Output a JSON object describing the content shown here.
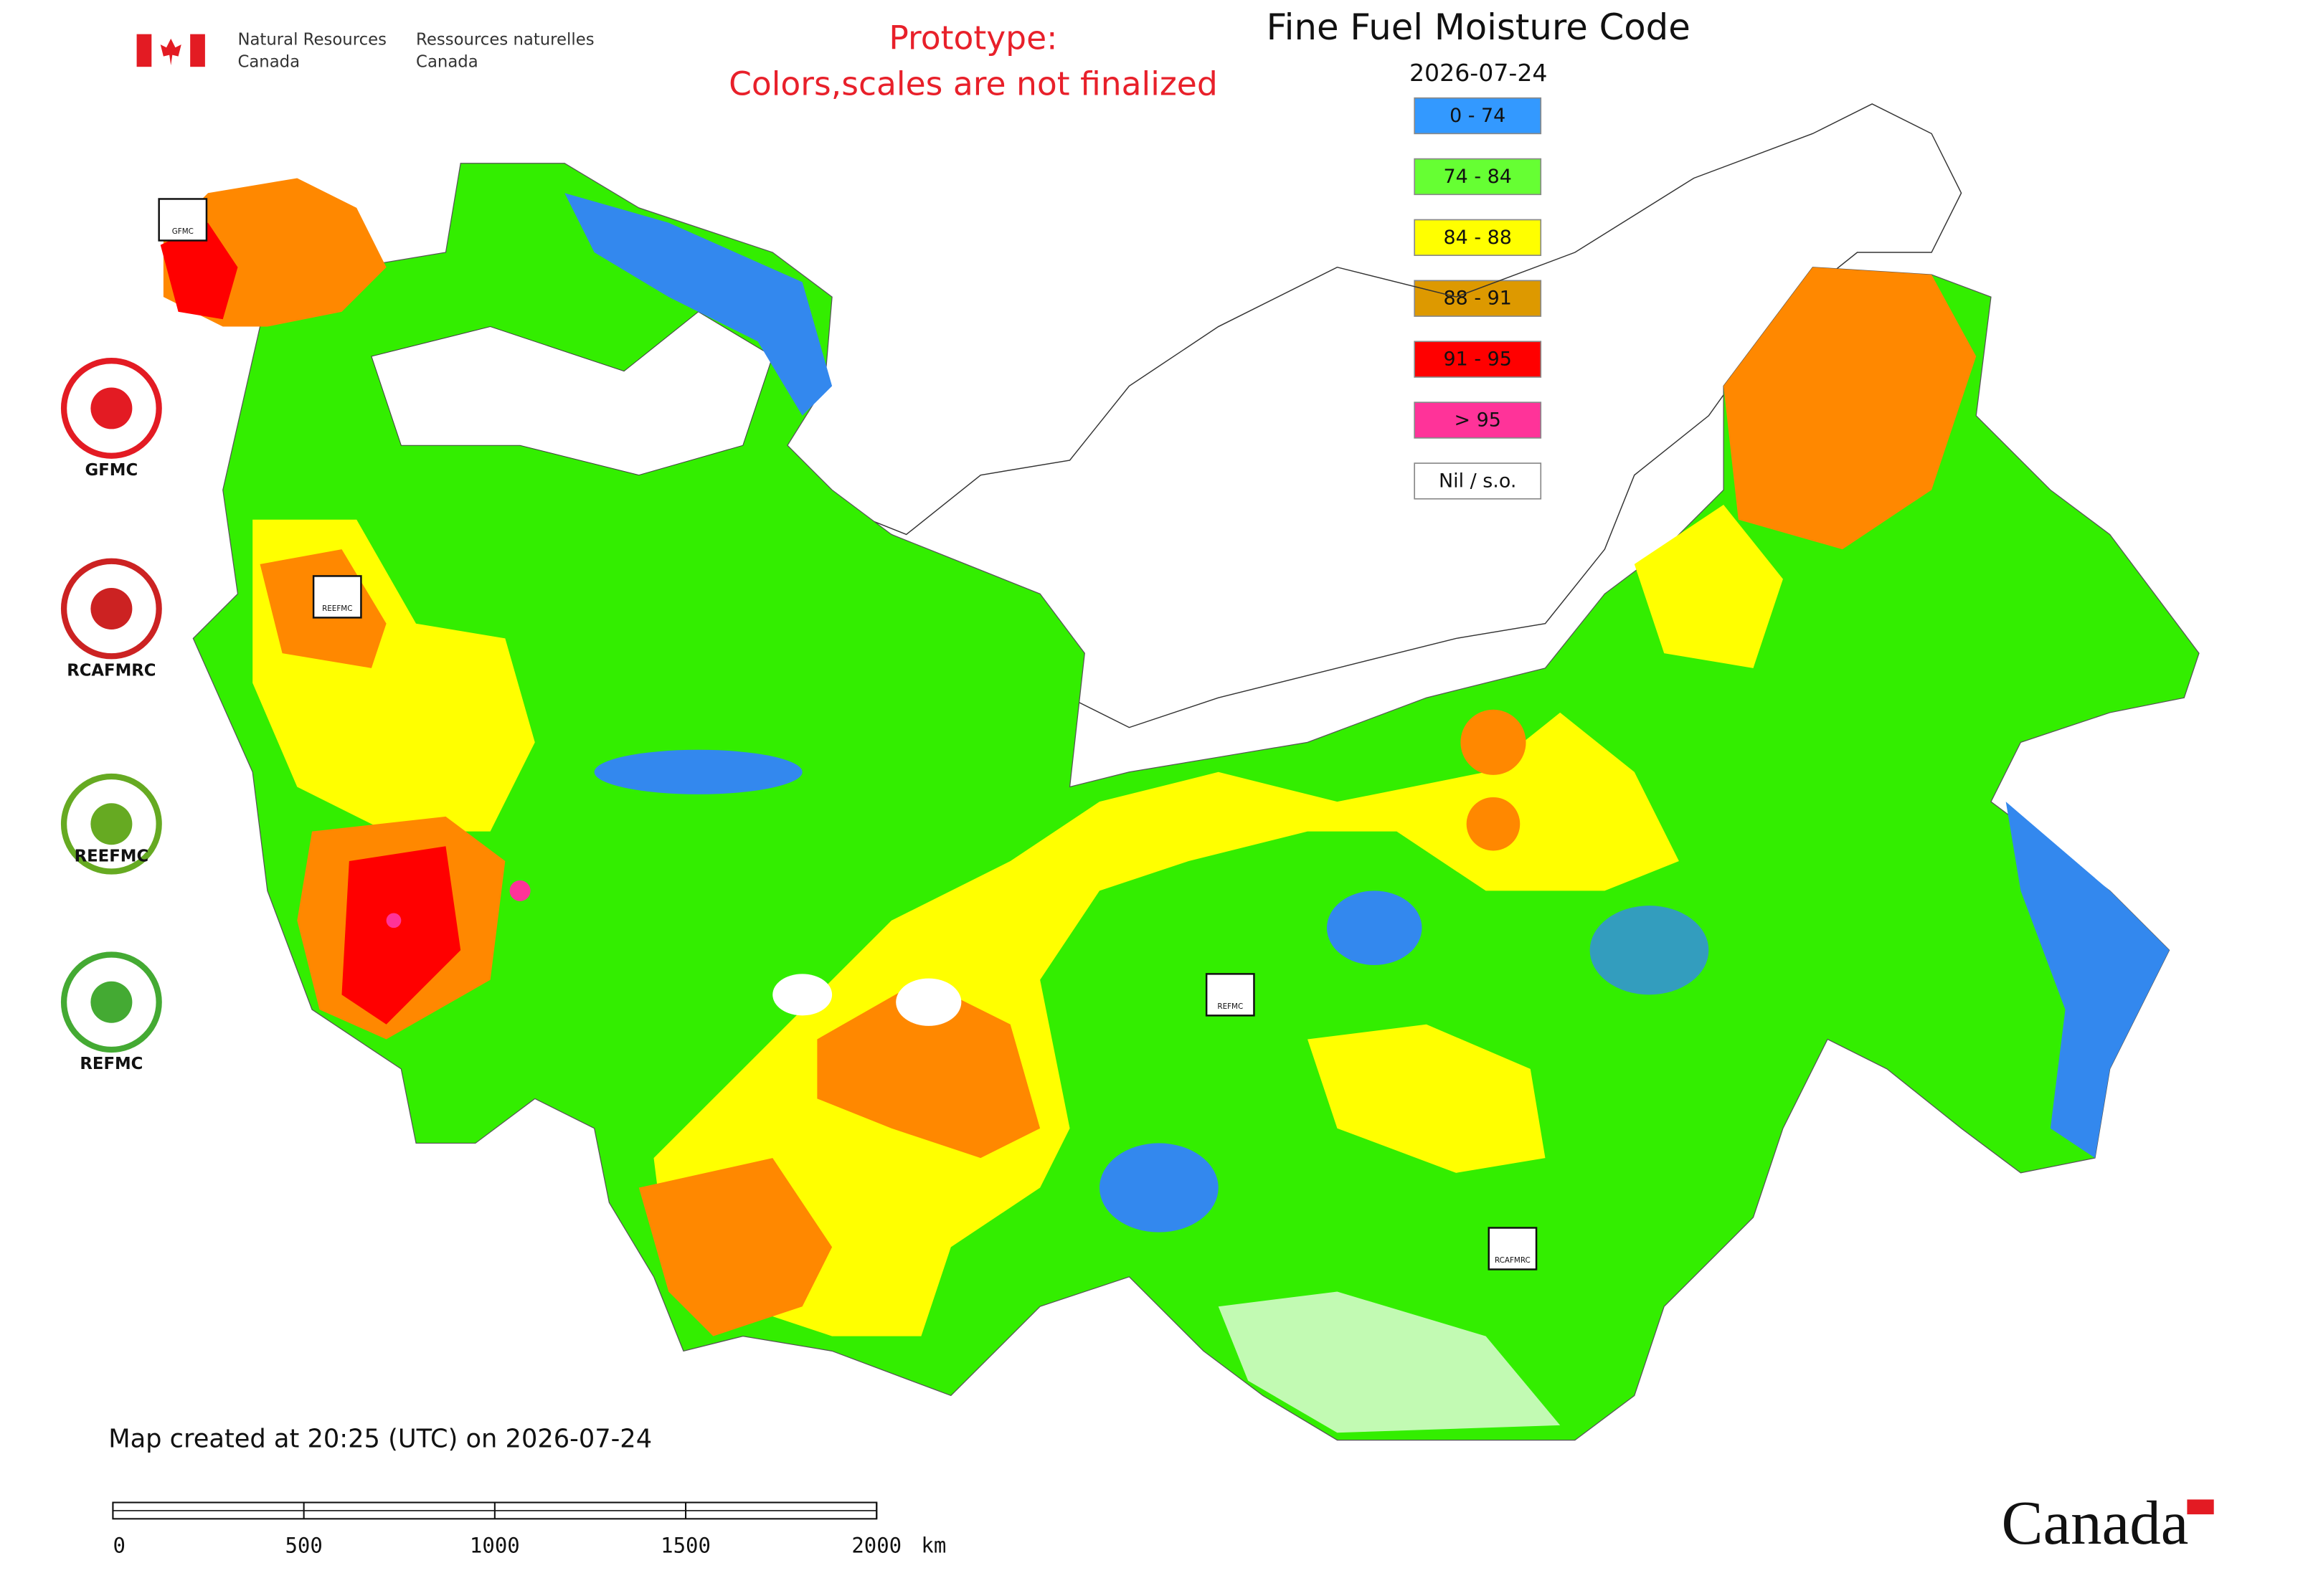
{
  "header": {
    "agency_en": [
      "Natural Resources",
      "Canada"
    ],
    "agency_fr": [
      "Ressources naturelles",
      "Canada"
    ],
    "notice": [
      "Prototype:",
      "Colors,scales are not finalized"
    ],
    "title": "Fine Fuel Moisture Code",
    "date": "2026-07-24"
  },
  "legend": [
    {
      "label": "0 - 74",
      "color": "#3399ff"
    },
    {
      "label": "74 - 84",
      "color": "#66ff33"
    },
    {
      "label": "84 - 88",
      "color": "#ffff00"
    },
    {
      "label": "88 - 91",
      "color": "#dd9900"
    },
    {
      "label": "91 - 95",
      "color": "#ff0000"
    },
    {
      "label": "> 95",
      "color": "#ff3399"
    },
    {
      "label": "Nil / s.o.",
      "color": "#ffffff"
    }
  ],
  "logos": [
    "GFMC",
    "RCAFMRC",
    "REEFMC",
    "REFMC"
  ],
  "map_markers": [
    "GFMC",
    "REEFMC",
    "REFMC",
    "RCAFMRC"
  ],
  "footer": {
    "created": "Map created at 20:25 (UTC) on 2026-07-24",
    "scale_ticks": [
      0,
      500,
      1000,
      1500,
      2000
    ],
    "scale_unit": "km",
    "wordmark": "Canada"
  }
}
